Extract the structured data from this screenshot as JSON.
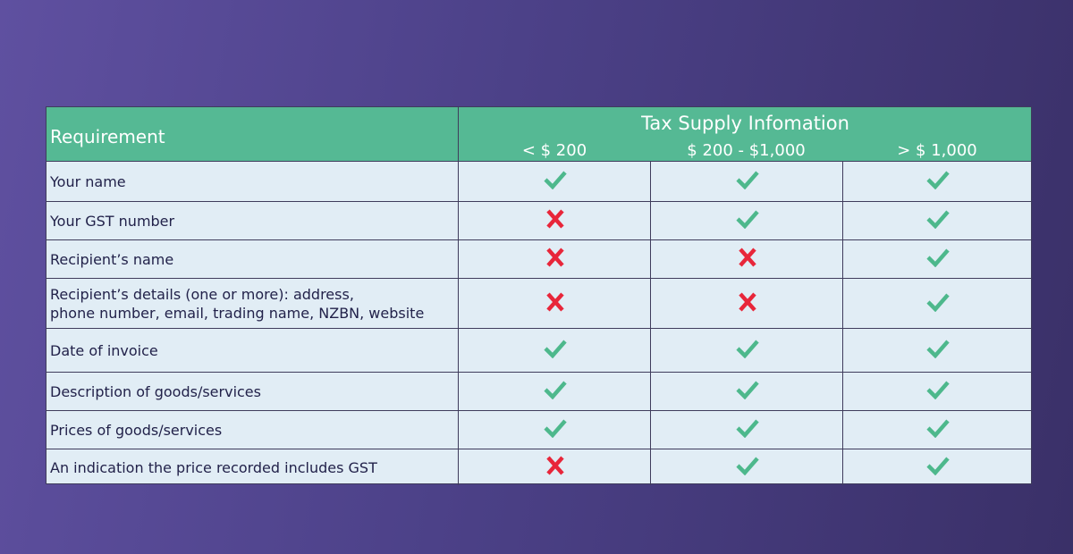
{
  "header": {
    "requirement_label": "Requirement",
    "group_title": "Tax Supply Infomation",
    "columns": [
      "< $ 200",
      "$ 200 - $1,000",
      "> $ 1,000"
    ]
  },
  "colors": {
    "check": "#4db88c",
    "cross": "#e8263a",
    "header": "#55b994"
  },
  "rows": [
    {
      "label": "Your name",
      "values": [
        "check",
        "check",
        "check"
      ]
    },
    {
      "label": "Your GST number",
      "values": [
        "cross",
        "check",
        "check"
      ]
    },
    {
      "label": "Recipient’s name",
      "values": [
        "cross",
        "cross",
        "check"
      ]
    },
    {
      "label": "Recipient’s details (one or more): address,\nphone number, email, trading name, NZBN, website",
      "values": [
        "cross",
        "cross",
        "check"
      ]
    },
    {
      "label": "Date of invoice",
      "values": [
        "check",
        "check",
        "check"
      ]
    },
    {
      "label": "Description of goods/services",
      "values": [
        "check",
        "check",
        "check"
      ]
    },
    {
      "label": "Prices of goods/services",
      "values": [
        "check",
        "check",
        "check"
      ]
    },
    {
      "label": "An indication the price recorded includes GST",
      "values": [
        "cross",
        "check",
        "check"
      ]
    }
  ]
}
